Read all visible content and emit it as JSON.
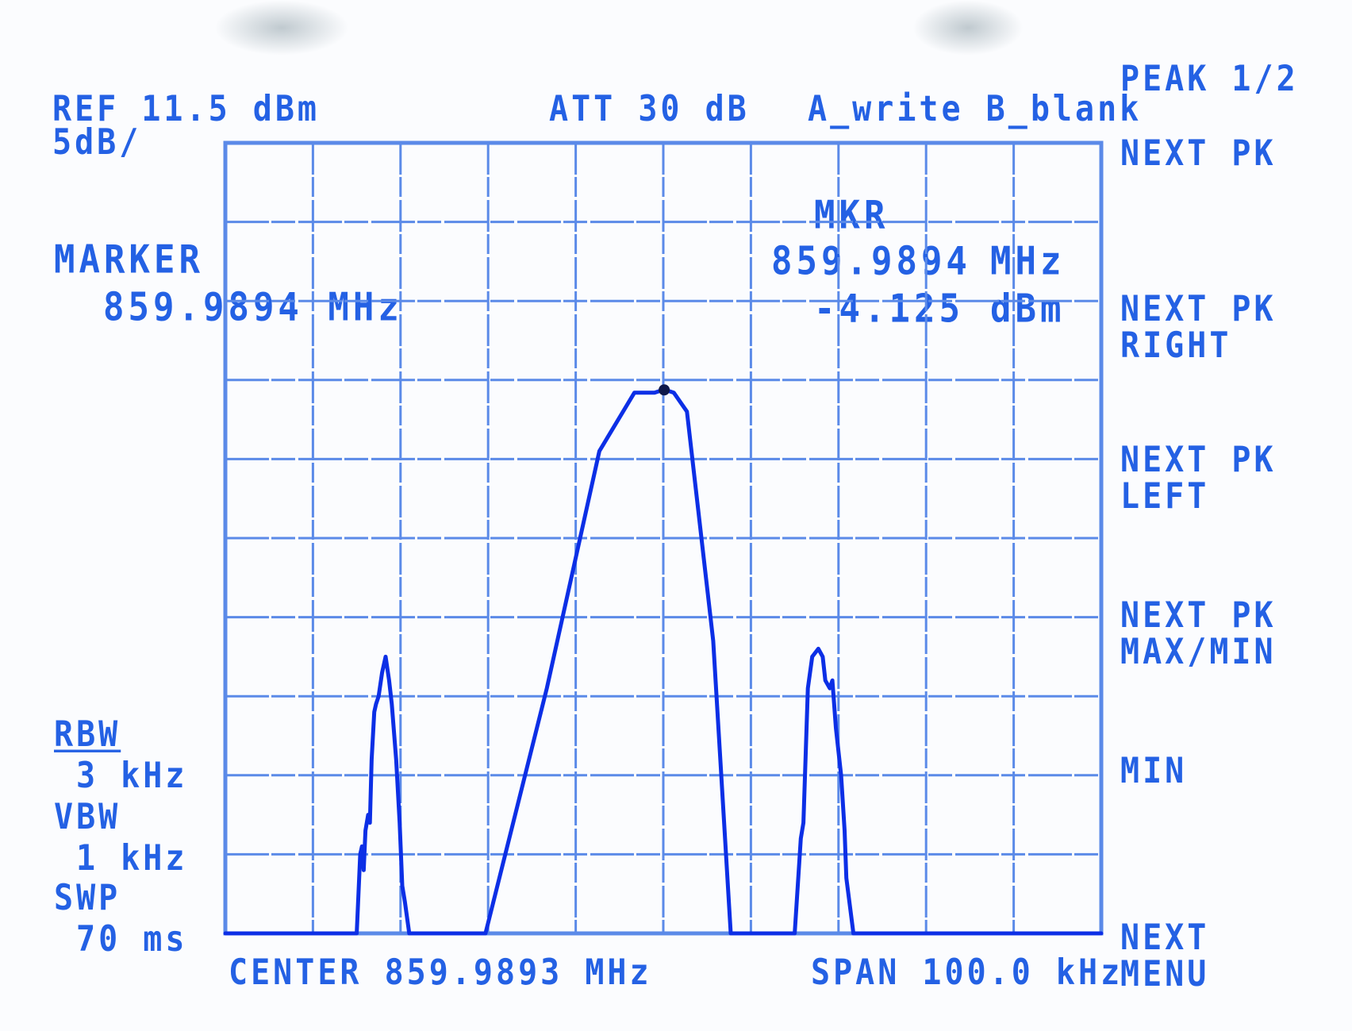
{
  "header": {
    "ref": "REF 11.5 dBm",
    "scale": "5dB/",
    "att": "ATT 30 dB",
    "trace_mode": "A_write B_blank"
  },
  "marker_panel": {
    "label": "MARKER",
    "freq": "859.9894 MHz"
  },
  "marker_readout": {
    "title": "MKR",
    "freq_value": "859.9894",
    "freq_unit": "MHz",
    "amp_value": "-4.125",
    "amp_unit": "dBm"
  },
  "bandwidth": {
    "rbw_label": "RBW",
    "rbw_value": "3 kHz",
    "vbw_label": "VBW",
    "vbw_value": "1 kHz",
    "swp_label": "SWP",
    "swp_value": "70 ms"
  },
  "footer": {
    "center": "CENTER 859.9893 MHz",
    "span": "SPAN 100.0 kHz"
  },
  "softkeys": {
    "title": "PEAK 1/2",
    "items": [
      {
        "line1": "NEXT PK",
        "line2": ""
      },
      {
        "line1": "NEXT PK",
        "line2": "RIGHT"
      },
      {
        "line1": "NEXT PK",
        "line2": "LEFT"
      },
      {
        "line1": "NEXT PK",
        "line2": "MAX/MIN"
      },
      {
        "line1": "MIN",
        "line2": ""
      },
      {
        "line1": "NEXT",
        "line2": "MENU"
      }
    ]
  },
  "colors": {
    "trace": "#0c2fe6",
    "grid": "#5b8ae8",
    "text": "#2461e4",
    "marker": "#101a4a"
  },
  "chart_data": {
    "type": "line",
    "x_unit": "MHz",
    "y_unit": "dBm",
    "xlim": [
      859.9393,
      860.0393
    ],
    "ylim": [
      -38.5,
      11.5
    ],
    "grid": true,
    "divisions": {
      "x": 10,
      "y": 10
    },
    "marker": {
      "x": 859.9894,
      "y": -4.125
    },
    "series": [
      {
        "x": [
          859.9393,
          859.9543,
          859.9547,
          859.9549,
          859.9551,
          859.9553,
          859.9556,
          859.9558,
          859.956,
          859.9563,
          859.9565,
          859.9568,
          859.9572,
          859.9576,
          859.958,
          859.9583,
          859.9588,
          859.9592,
          859.9595,
          859.9598,
          859.9603,
          859.961,
          859.969,
          859.976,
          859.982,
          859.986,
          859.9883,
          859.9894,
          859.9905,
          859.992,
          859.995,
          859.997,
          860.0015,
          860.0043,
          860.005,
          860.0053,
          860.0058,
          860.0063,
          860.007,
          860.0075,
          860.0078,
          860.0083,
          860.0086,
          860.009,
          860.0096,
          860.01,
          860.0102,
          860.011,
          860.012,
          860.0393
        ],
        "y": [
          -38.5,
          -38.5,
          -33.5,
          -33.0,
          -34.5,
          -32.0,
          -31.0,
          -31.5,
          -27.5,
          -24.5,
          -24.0,
          -23.5,
          -22.0,
          -21.0,
          -22.5,
          -24.0,
          -27.5,
          -31.5,
          -35.5,
          -36.5,
          -38.5,
          -38.5,
          -38.5,
          -23.0,
          -8.0,
          -4.3,
          -4.3,
          -4.1,
          -4.3,
          -5.5,
          -20.0,
          -38.5,
          -38.5,
          -38.5,
          -32.5,
          -31.5,
          -23.0,
          -21.0,
          -20.5,
          -21.0,
          -22.5,
          -23.0,
          -22.5,
          -25.5,
          -28.5,
          -32.0,
          -35.0,
          -38.5,
          -38.5,
          -38.5
        ]
      }
    ]
  }
}
